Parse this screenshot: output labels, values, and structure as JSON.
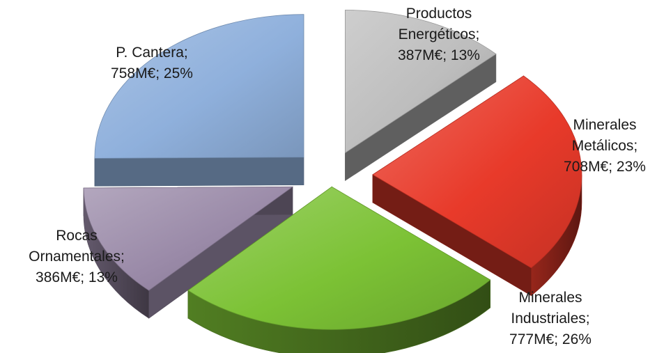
{
  "chart_data": {
    "type": "pie",
    "title": "",
    "unit": "M€",
    "slices": [
      {
        "name": "Productos Energéticos",
        "lines": [
          "Productos",
          "Energéticos;",
          "387M€; 13%"
        ],
        "value": 387,
        "percent": 13,
        "color": "#bdbdbd"
      },
      {
        "name": "Minerales Metálicos",
        "lines": [
          "Minerales",
          "Metálicos;",
          "708M€; 23%"
        ],
        "value": 708,
        "percent": 23,
        "color": "#e83a2a"
      },
      {
        "name": "Minerales Industriales",
        "lines": [
          "Minerales",
          "Industriales;",
          "777M€; 26%"
        ],
        "value": 777,
        "percent": 26,
        "color": "#7cc235"
      },
      {
        "name": "Rocas Ornamentales",
        "lines": [
          "Rocas",
          "Ornamentales;",
          "386M€; 13%"
        ],
        "value": 386,
        "percent": 13,
        "color": "#9a8aa8"
      },
      {
        "name": "P. Cantera",
        "lines": [
          "P. Cantera;",
          "758M€; 25%"
        ],
        "value": 758,
        "percent": 25,
        "color": "#8fb0dc"
      }
    ]
  }
}
